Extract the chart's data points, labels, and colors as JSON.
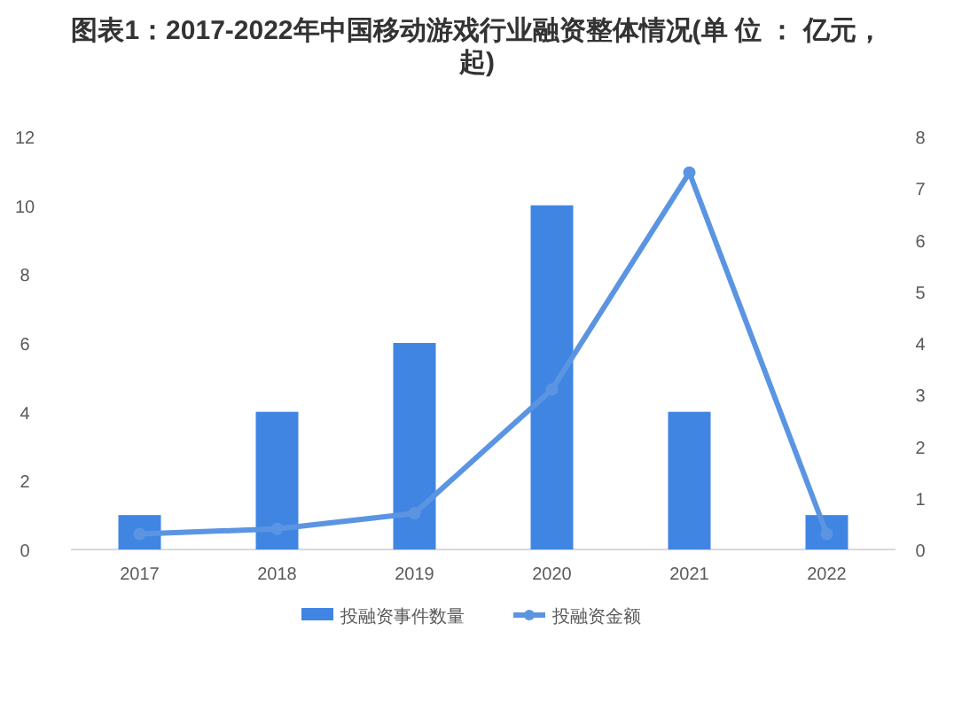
{
  "chart_data": {
    "type": "bar",
    "title": "图表1：2017-2022年中国移动游戏行业融资整体情况(单 位 ： 亿元，起)",
    "categories": [
      "2017",
      "2018",
      "2019",
      "2020",
      "2021",
      "2022"
    ],
    "series": [
      {
        "name": "投融资事件数量",
        "color": "#4185e3",
        "values": [
          1,
          4,
          6,
          10,
          4,
          1
        ]
      },
      {
        "name": "投融资金额",
        "color": "#5b95e2",
        "type": "line",
        "axis": "y2",
        "marker": "circle",
        "values": [
          0.3,
          0.4,
          0.7,
          3.1,
          7.3,
          0.3
        ]
      }
    ],
    "ylim": [
      0,
      12
    ],
    "yticks": [
      0,
      2,
      4,
      6,
      8,
      10,
      12
    ],
    "y2lim": [
      0,
      8
    ],
    "y2ticks": [
      0,
      1,
      2,
      3,
      4,
      5,
      6,
      7,
      8
    ],
    "legend": "bottom"
  }
}
